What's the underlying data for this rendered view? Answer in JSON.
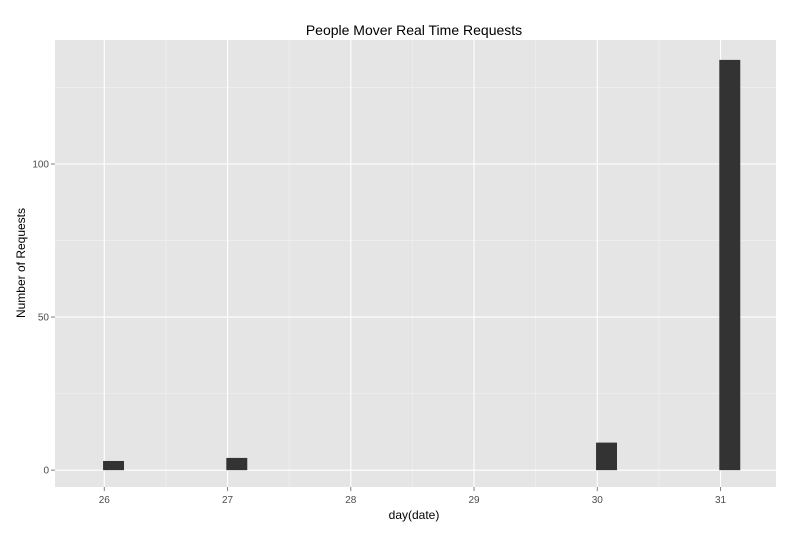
{
  "chart_data": {
    "type": "bar",
    "title": "People Mover Real Time Requests",
    "xlabel": "day(date)",
    "ylabel": "Number of Requests",
    "x": [
      26,
      27,
      30,
      31
    ],
    "values": [
      3,
      4,
      9,
      134
    ],
    "xlim": [
      25.6,
      31.45
    ],
    "ylim": [
      -5.5,
      140.5
    ],
    "xticks": [
      "26",
      "27",
      "28",
      "29",
      "30",
      "31"
    ],
    "xtick_values": [
      26,
      27,
      28,
      29,
      30,
      31
    ],
    "yticks": [
      "0",
      "50",
      "100"
    ],
    "ytick_values": [
      0,
      50,
      100
    ],
    "bar_width": 0.16,
    "grid": true,
    "colors": {
      "panel_background": "#e5e5e5",
      "grid_major": "#ffffff",
      "grid_minor": "#f2f2f2",
      "bar_fill": "#333333"
    }
  }
}
